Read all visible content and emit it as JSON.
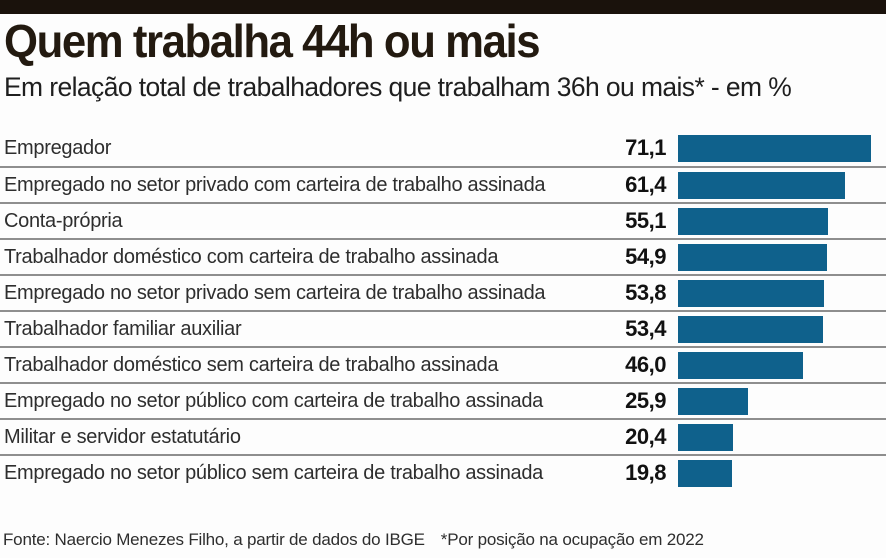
{
  "chart_data": {
    "type": "bar",
    "orientation": "horizontal",
    "title": "Quem trabalha 44h ou mais",
    "subtitle": "Em relação total de trabalhadores que trabalham 36h ou mais* - em %",
    "categories": [
      "Empregador",
      "Empregado no setor privado com carteira de trabalho assinada",
      "Conta-própria",
      "Trabalhador doméstico com carteira de trabalho assinada",
      "Empregado no setor privado sem carteira de trabalho assinada",
      "Trabalhador familiar auxiliar",
      "Trabalhador doméstico sem carteira de trabalho assinada",
      "Empregado no setor público com carteira de trabalho assinada",
      "Militar e servidor estatutário",
      "Empregado no setor público sem carteira de trabalho assinada"
    ],
    "values": [
      71.1,
      61.4,
      55.1,
      54.9,
      53.8,
      53.4,
      46.0,
      25.9,
      20.4,
      19.8
    ],
    "value_labels": [
      "71,1",
      "61,4",
      "55,1",
      "54,9",
      "53,8",
      "53,4",
      "46,0",
      "25,9",
      "20,4",
      "19,8"
    ],
    "xlim": [
      0,
      71.1
    ],
    "unit": "%",
    "grid": false,
    "legend": false,
    "value_position": "left-of-bar",
    "bar_color": "#0f618c",
    "separator_color": "#8e8e8e",
    "topbar_color": "#1a120c"
  },
  "footer": {
    "source": "Fonte: Naercio Menezes Filho, a partir de dados do IBGE",
    "note": "*Por posição na ocupação em 2022"
  }
}
